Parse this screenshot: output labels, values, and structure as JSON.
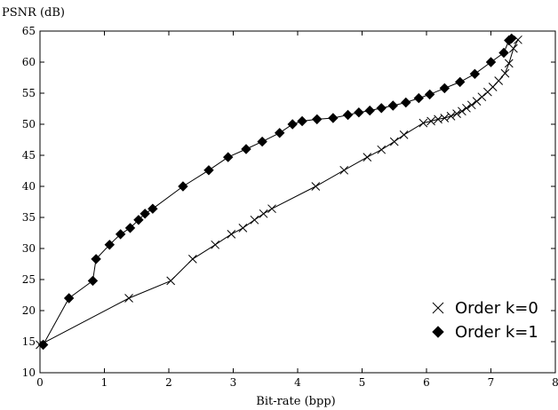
{
  "chart_data": {
    "type": "line",
    "xlabel": "Bit-rate (bpp)",
    "ylabel": "PSNR (dB)",
    "xlim": [
      0,
      8
    ],
    "ylim": [
      10,
      65
    ],
    "xticks": [
      0,
      1,
      2,
      3,
      4,
      5,
      6,
      7,
      8
    ],
    "yticks": [
      10,
      15,
      20,
      25,
      30,
      35,
      40,
      45,
      50,
      55,
      60,
      65
    ],
    "legend_position": "lower-right",
    "grid": false,
    "series": [
      {
        "name": "Order k=0",
        "marker": "x",
        "color": "#000000",
        "points": [
          [
            0.0,
            14.5
          ],
          [
            1.38,
            22.0
          ],
          [
            2.03,
            24.8
          ],
          [
            2.37,
            28.3
          ],
          [
            2.72,
            30.6
          ],
          [
            2.97,
            32.3
          ],
          [
            3.15,
            33.3
          ],
          [
            3.33,
            34.6
          ],
          [
            3.47,
            35.6
          ],
          [
            3.6,
            36.4
          ],
          [
            4.28,
            40.0
          ],
          [
            4.72,
            42.6
          ],
          [
            5.08,
            44.7
          ],
          [
            5.3,
            45.9
          ],
          [
            5.5,
            47.2
          ],
          [
            5.65,
            48.3
          ],
          [
            5.95,
            50.2
          ],
          [
            6.07,
            50.5
          ],
          [
            6.18,
            50.8
          ],
          [
            6.28,
            51.0
          ],
          [
            6.38,
            51.3
          ],
          [
            6.47,
            51.7
          ],
          [
            6.55,
            52.1
          ],
          [
            6.62,
            52.6
          ],
          [
            6.7,
            53.1
          ],
          [
            6.78,
            53.7
          ],
          [
            6.86,
            54.4
          ],
          [
            6.95,
            55.2
          ],
          [
            7.03,
            56.0
          ],
          [
            7.12,
            57.0
          ],
          [
            7.22,
            58.2
          ],
          [
            7.28,
            59.8
          ],
          [
            7.35,
            62.2
          ],
          [
            7.42,
            63.6
          ]
        ]
      },
      {
        "name": "Order k=1",
        "marker": "diamond",
        "color": "#000000",
        "points": [
          [
            0.05,
            14.5
          ],
          [
            0.45,
            22.0
          ],
          [
            0.82,
            24.8
          ],
          [
            0.87,
            28.3
          ],
          [
            1.08,
            30.6
          ],
          [
            1.25,
            32.3
          ],
          [
            1.4,
            33.3
          ],
          [
            1.53,
            34.6
          ],
          [
            1.63,
            35.6
          ],
          [
            1.75,
            36.4
          ],
          [
            2.22,
            40.0
          ],
          [
            2.62,
            42.6
          ],
          [
            2.92,
            44.7
          ],
          [
            3.2,
            46.0
          ],
          [
            3.45,
            47.2
          ],
          [
            3.72,
            48.6
          ],
          [
            3.92,
            50.0
          ],
          [
            4.07,
            50.5
          ],
          [
            4.3,
            50.8
          ],
          [
            4.55,
            51.0
          ],
          [
            4.78,
            51.5
          ],
          [
            4.95,
            51.9
          ],
          [
            5.12,
            52.2
          ],
          [
            5.3,
            52.6
          ],
          [
            5.48,
            53.0
          ],
          [
            5.68,
            53.5
          ],
          [
            5.88,
            54.2
          ],
          [
            6.05,
            54.8
          ],
          [
            6.28,
            55.8
          ],
          [
            6.52,
            56.8
          ],
          [
            6.75,
            58.1
          ],
          [
            7.0,
            60.0
          ],
          [
            7.2,
            61.5
          ],
          [
            7.28,
            63.5
          ],
          [
            7.32,
            63.8
          ]
        ]
      }
    ]
  }
}
